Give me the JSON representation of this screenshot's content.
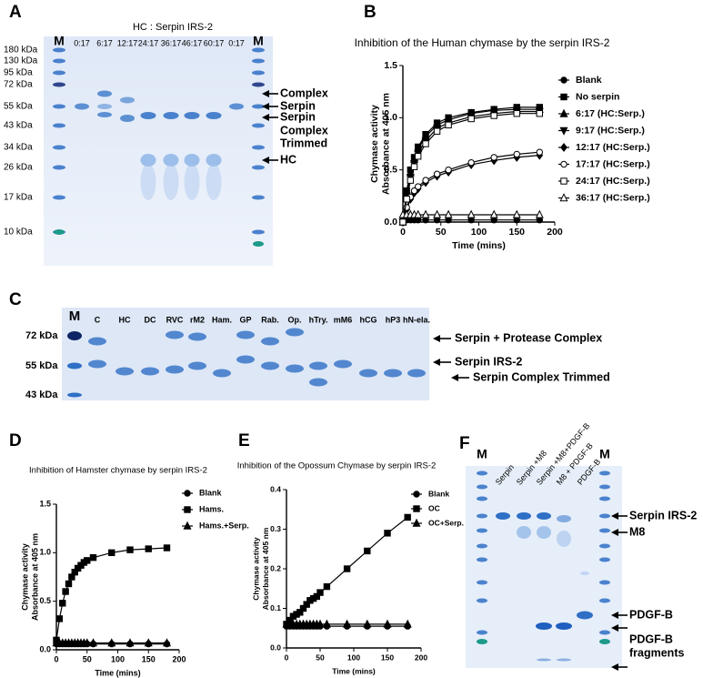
{
  "panels": {
    "A": {
      "label": "A",
      "title": "HC : Serpin IRS-2",
      "marker_left": "M",
      "marker_right": "M",
      "lanes": [
        "0:17",
        "6:17",
        "12:17",
        "24:17",
        "36:17",
        "46:17",
        "60:17",
        "0:17"
      ],
      "mw": [
        "180 kDa",
        "130 kDa",
        "95 kDa",
        "72 kDa",
        "55 kDa",
        "43 kDa",
        "34 kDa",
        "26 kDa",
        "17 kDa",
        "10 kDa"
      ],
      "annotations": [
        "Complex",
        "Serpin",
        "Serpin",
        "Complex",
        "Trimmed",
        "HC"
      ]
    },
    "C": {
      "label": "C",
      "marker": "M",
      "lanes": [
        "C",
        "HC",
        "DC",
        "RVC",
        "rM2",
        "Ham.",
        "GP",
        "Rab.",
        "Op.",
        "hTry.",
        "mM6",
        "hCG",
        "hP3",
        "hN-ela."
      ],
      "mw": [
        "72 kDa",
        "55 kDa",
        "43 kDa"
      ],
      "annotations": [
        "Serpin + Protease Complex",
        "Serpin IRS-2",
        "Serpin Complex Trimmed"
      ]
    },
    "F": {
      "label": "F",
      "marker_left": "M",
      "marker_right": "M",
      "lanes": [
        "Serpin",
        "Serpin +M8",
        "Serpin +M8+PDGF-B",
        "M8 + PDGF-B",
        "PDGF-B"
      ],
      "annotations": [
        "Serpin IRS-2",
        "M8",
        "PDGF-B",
        "PDGF-B",
        "fragments"
      ]
    }
  },
  "chart_data": [
    {
      "type": "line",
      "panel_label": "B",
      "title": "Inhibition of the Human chymase by the serpin IRS-2",
      "xlabel": "Time (mins)",
      "ylabel": [
        "Chymase activity",
        "Absorbance at 405 nm"
      ],
      "xlim": [
        0,
        200
      ],
      "xticks": [
        0,
        50,
        100,
        150,
        200
      ],
      "ylim": [
        0,
        1.5
      ],
      "yticks": [
        {
          "value": 0,
          "label": "0.0"
        },
        0.5,
        {
          "value": 1,
          "label": "1.0"
        },
        1.5
      ],
      "x": [
        0,
        5,
        10,
        15,
        20,
        30,
        45,
        60,
        90,
        120,
        150,
        180
      ],
      "series": [
        {
          "name": "Blank",
          "color": "#000",
          "marker": "circle",
          "values": [
            0.02,
            0.02,
            0.02,
            0.02,
            0.02,
            0.02,
            0.02,
            0.02,
            0.02,
            0.02,
            0.02,
            0.02
          ]
        },
        {
          "name": "No serpin",
          "color": "#000",
          "marker": "square",
          "values": [
            0,
            0.3,
            0.5,
            0.62,
            0.72,
            0.84,
            0.95,
            1.0,
            1.05,
            1.08,
            1.1,
            1.1
          ]
        },
        {
          "name": "6:17 (HC:Serp.)",
          "color": "#000",
          "marker": "triangle",
          "values": [
            0,
            0.28,
            0.47,
            0.6,
            0.7,
            0.82,
            0.93,
            0.98,
            1.04,
            1.07,
            1.08,
            1.08
          ]
        },
        {
          "name": "9:17 (HC:Serp.)",
          "color": "#000",
          "marker": "down-triangle",
          "values": [
            0,
            0.25,
            0.43,
            0.56,
            0.66,
            0.78,
            0.9,
            0.95,
            1.01,
            1.04,
            1.06,
            1.06
          ]
        },
        {
          "name": "12:17 (HC:Serp.)",
          "color": "#000",
          "marker": "diamond",
          "values": [
            0,
            0.12,
            0.22,
            0.28,
            0.32,
            0.38,
            0.44,
            0.48,
            0.55,
            0.59,
            0.62,
            0.64
          ]
        },
        {
          "name": "17:17 (HC:Serp.)",
          "color": "#000",
          "marker": "open-circle",
          "values": [
            0,
            0.14,
            0.24,
            0.3,
            0.34,
            0.4,
            0.46,
            0.5,
            0.57,
            0.62,
            0.65,
            0.67
          ]
        },
        {
          "name": "24:17 (HC:Serp.)",
          "color": "#000",
          "marker": "open-square",
          "values": [
            0,
            0.22,
            0.4,
            0.53,
            0.63,
            0.75,
            0.87,
            0.93,
            0.99,
            1.02,
            1.04,
            1.04
          ]
        },
        {
          "name": "36:17 (HC:Serp.)",
          "color": "#000",
          "marker": "open-triangle",
          "values": [
            0.07,
            0.07,
            0.07,
            0.07,
            0.07,
            0.07,
            0.07,
            0.07,
            0.07,
            0.07,
            0.07,
            0.07
          ]
        }
      ]
    },
    {
      "type": "line",
      "panel_label": "D",
      "title": "Inhibition of Hamster chymase by serpin IRS-2",
      "xlabel": "Time (mins)",
      "ylabel": [
        "Chymase activity",
        "Absorbance at 405 nm"
      ],
      "xlim": [
        0,
        200
      ],
      "xticks": [
        0,
        50,
        100,
        150,
        200
      ],
      "ylim": [
        0,
        1.5
      ],
      "yticks": [
        {
          "value": 0,
          "label": "0.0"
        },
        0.5,
        {
          "value": 1,
          "label": "1.0"
        },
        1.5
      ],
      "x": [
        0,
        5,
        10,
        15,
        20,
        25,
        30,
        35,
        40,
        45,
        50,
        60,
        90,
        120,
        150,
        180
      ],
      "series": [
        {
          "name": "Blank",
          "color": "#000",
          "marker": "circle",
          "values": [
            0.06,
            0.06,
            0.06,
            0.06,
            0.06,
            0.06,
            0.06,
            0.06,
            0.06,
            0.06,
            0.06,
            0.06,
            0.06,
            0.06,
            0.06,
            0.06
          ]
        },
        {
          "name": "Hams.",
          "color": "#000",
          "marker": "square",
          "values": [
            0.1,
            0.32,
            0.48,
            0.6,
            0.68,
            0.75,
            0.8,
            0.84,
            0.87,
            0.9,
            0.92,
            0.95,
            1.0,
            1.03,
            1.04,
            1.05
          ]
        },
        {
          "name": "Hams.+Serp.",
          "color": "#000",
          "marker": "triangle",
          "values": [
            0.07,
            0.07,
            0.07,
            0.07,
            0.07,
            0.07,
            0.07,
            0.07,
            0.07,
            0.07,
            0.07,
            0.07,
            0.07,
            0.07,
            0.07,
            0.07
          ]
        }
      ]
    },
    {
      "type": "line",
      "panel_label": "E",
      "title": "Inhibition of the Opossum Chymase by serpin IRS-2",
      "xlabel": "Time (mins)",
      "ylabel": [
        "Chymase activity",
        "Absorbance at 405 nm"
      ],
      "xlim": [
        0,
        200
      ],
      "xticks": [
        0,
        50,
        100,
        150,
        200
      ],
      "ylim": [
        0,
        0.4
      ],
      "yticks": [
        {
          "value": 0,
          "label": "0.0"
        },
        0.1,
        0.2,
        0.3,
        0.4
      ],
      "x": [
        0,
        5,
        10,
        15,
        20,
        25,
        30,
        35,
        40,
        45,
        50,
        60,
        90,
        120,
        150,
        180
      ],
      "series": [
        {
          "name": "Blank",
          "color": "#000",
          "marker": "circle",
          "values": [
            0.055,
            0.055,
            0.055,
            0.055,
            0.055,
            0.055,
            0.055,
            0.055,
            0.055,
            0.055,
            0.055,
            0.055,
            0.055,
            0.055,
            0.055,
            0.055
          ]
        },
        {
          "name": "OC",
          "color": "#000",
          "marker": "square",
          "values": [
            0.06,
            0.07,
            0.08,
            0.085,
            0.09,
            0.1,
            0.11,
            0.12,
            0.125,
            0.13,
            0.14,
            0.155,
            0.2,
            0.245,
            0.29,
            0.33
          ]
        },
        {
          "name": "OC+Serp.",
          "color": "#000",
          "marker": "triangle",
          "values": [
            0.06,
            0.06,
            0.06,
            0.06,
            0.06,
            0.06,
            0.06,
            0.06,
            0.06,
            0.06,
            0.06,
            0.06,
            0.06,
            0.06,
            0.06,
            0.06
          ]
        }
      ]
    }
  ]
}
